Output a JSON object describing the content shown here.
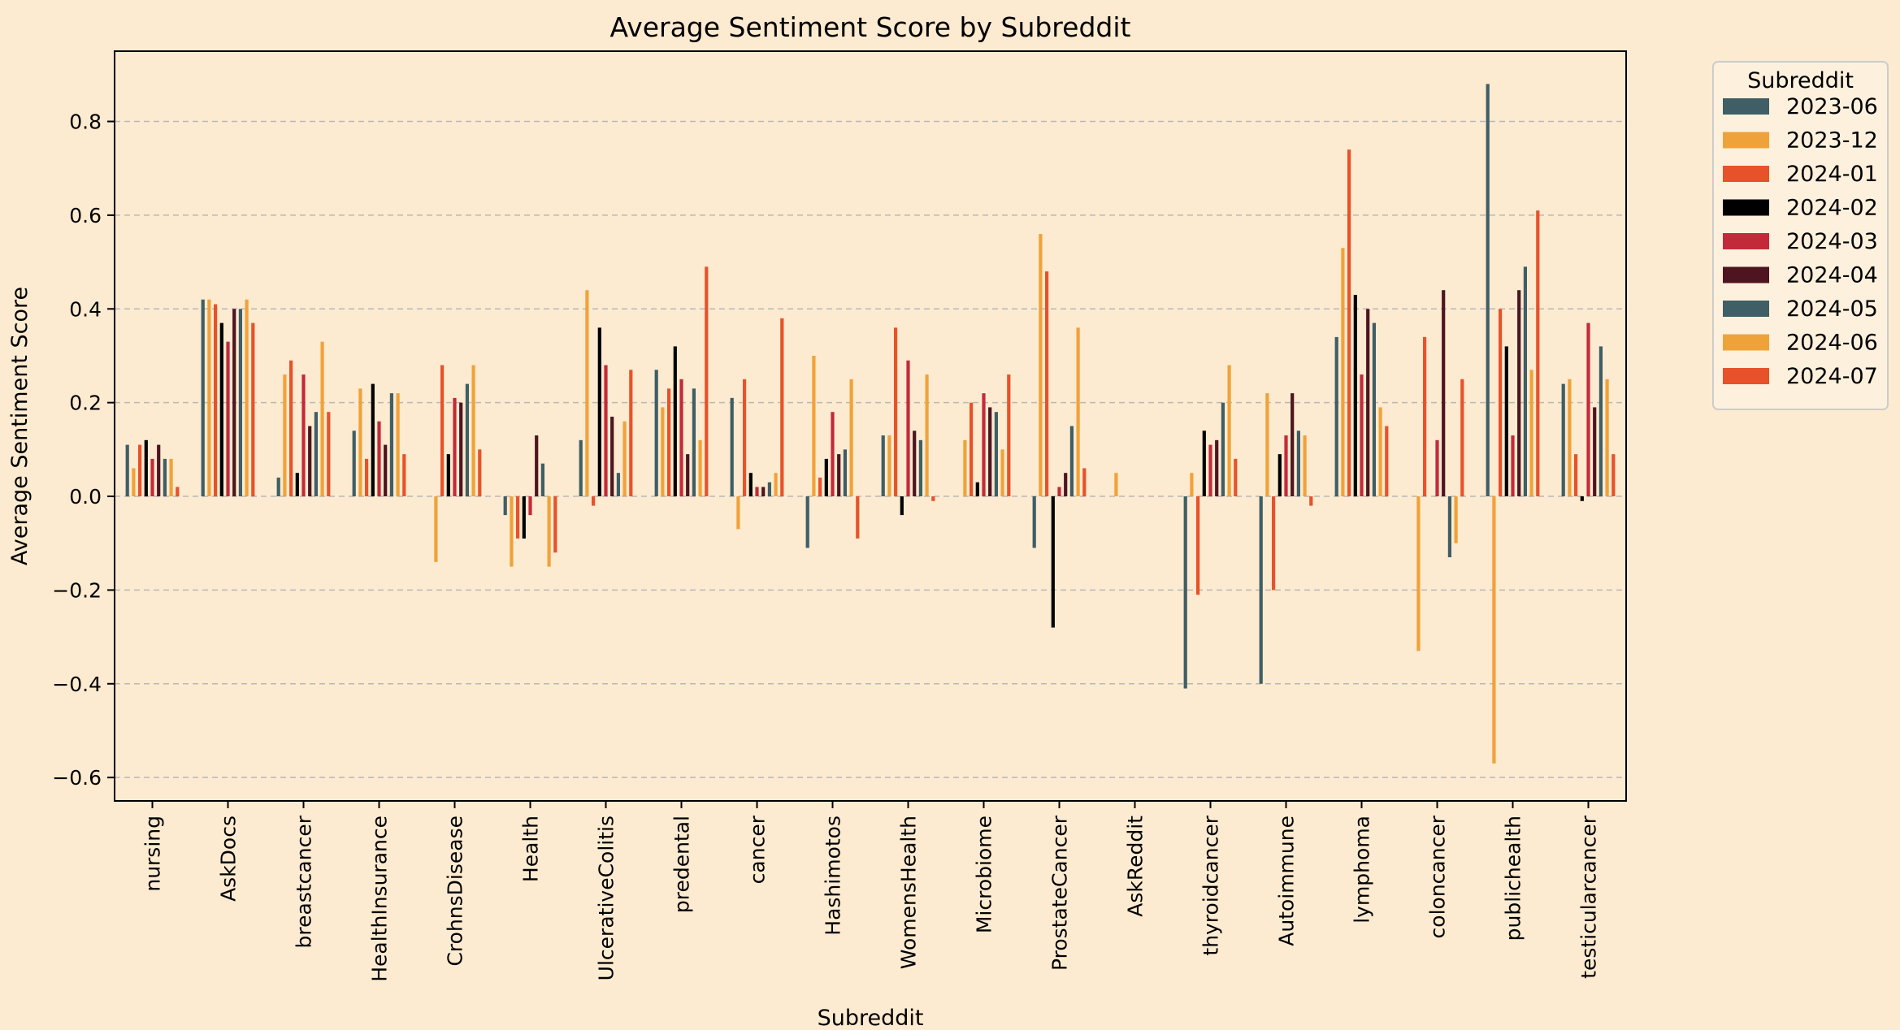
{
  "chart_data": {
    "type": "bar",
    "title": "Average Sentiment Score by Subreddit",
    "xlabel": "Subreddit",
    "ylabel": "Average Sentiment Score",
    "ylim": [
      -0.65,
      0.95
    ],
    "yticks": [
      -0.6,
      -0.4,
      -0.2,
      0.0,
      0.2,
      0.4,
      0.6,
      0.8
    ],
    "ytick_labels": [
      "−0.6",
      "−0.4",
      "−0.2",
      "0.0",
      "0.2",
      "0.4",
      "0.6",
      "0.8"
    ],
    "grid": "y-dashed",
    "legend": {
      "title": "Subreddit",
      "placement": "outside-top-right"
    },
    "background": "#fcebd0",
    "categories": [
      "nursing",
      "AskDocs",
      "breastcancer",
      "HealthInsurance",
      "CrohnsDisease",
      "Health",
      "UlcerativeColitis",
      "predental",
      "cancer",
      "Hashimotos",
      "WomensHealth",
      "Microbiome",
      "ProstateCancer",
      "AskReddit",
      "thyroidcancer",
      "Autoimmune",
      "lymphoma",
      "coloncancer",
      "publichealth",
      "testicularcancer"
    ],
    "series": [
      {
        "name": "2023-06",
        "color": "#3f5e66",
        "values": [
          0.11,
          0.42,
          0.04,
          0.14,
          0.0,
          -0.04,
          0.12,
          0.27,
          0.21,
          -0.11,
          0.13,
          0.0,
          -0.11,
          0.0,
          -0.41,
          -0.4,
          0.34,
          0.0,
          0.88,
          0.24
        ]
      },
      {
        "name": "2023-12",
        "color": "#f0a23a",
        "values": [
          0.06,
          0.42,
          0.26,
          0.23,
          -0.14,
          -0.15,
          0.44,
          0.19,
          -0.07,
          0.3,
          0.13,
          0.12,
          0.56,
          0.05,
          0.05,
          0.22,
          0.53,
          -0.33,
          -0.57,
          0.25
        ]
      },
      {
        "name": "2024-01",
        "color": "#e8522a",
        "values": [
          0.11,
          0.41,
          0.29,
          0.08,
          0.28,
          -0.09,
          -0.02,
          0.23,
          0.25,
          0.04,
          0.36,
          0.2,
          0.48,
          0.0,
          -0.21,
          -0.2,
          0.74,
          0.34,
          0.4,
          0.09
        ]
      },
      {
        "name": "2024-02",
        "color": "#000000",
        "values": [
          0.12,
          0.37,
          0.05,
          0.24,
          0.09,
          -0.09,
          0.36,
          0.32,
          0.05,
          0.08,
          -0.04,
          0.03,
          -0.28,
          0.0,
          0.14,
          0.09,
          0.43,
          0.0,
          0.32,
          -0.01
        ]
      },
      {
        "name": "2024-03",
        "color": "#c22a3a",
        "values": [
          0.08,
          0.33,
          0.26,
          0.16,
          0.21,
          -0.04,
          0.28,
          0.25,
          0.02,
          0.18,
          0.29,
          0.22,
          0.02,
          0.0,
          0.11,
          0.13,
          0.26,
          0.12,
          0.13,
          0.37
        ]
      },
      {
        "name": "2024-04",
        "color": "#4e1520",
        "values": [
          0.11,
          0.4,
          0.15,
          0.11,
          0.2,
          0.13,
          0.17,
          0.09,
          0.02,
          0.09,
          0.14,
          0.19,
          0.05,
          0.0,
          0.12,
          0.22,
          0.4,
          0.44,
          0.44,
          0.19
        ]
      },
      {
        "name": "2024-05",
        "color": "#3f5e66",
        "values": [
          0.08,
          0.4,
          0.18,
          0.22,
          0.24,
          0.07,
          0.05,
          0.23,
          0.03,
          0.1,
          0.12,
          0.18,
          0.15,
          0.0,
          0.2,
          0.14,
          0.37,
          -0.13,
          0.49,
          0.32
        ]
      },
      {
        "name": "2024-06",
        "color": "#f0a23a",
        "values": [
          0.08,
          0.42,
          0.33,
          0.22,
          0.28,
          -0.15,
          0.16,
          0.12,
          0.05,
          0.25,
          0.26,
          0.1,
          0.36,
          0.0,
          0.28,
          0.13,
          0.19,
          -0.1,
          0.27,
          0.25
        ]
      },
      {
        "name": "2024-07",
        "color": "#e8522a",
        "values": [
          0.02,
          0.37,
          0.18,
          0.09,
          0.1,
          -0.12,
          0.27,
          0.49,
          0.38,
          -0.09,
          -0.01,
          0.26,
          0.06,
          0.0,
          0.08,
          -0.02,
          0.15,
          0.25,
          0.61,
          0.09
        ]
      }
    ]
  }
}
